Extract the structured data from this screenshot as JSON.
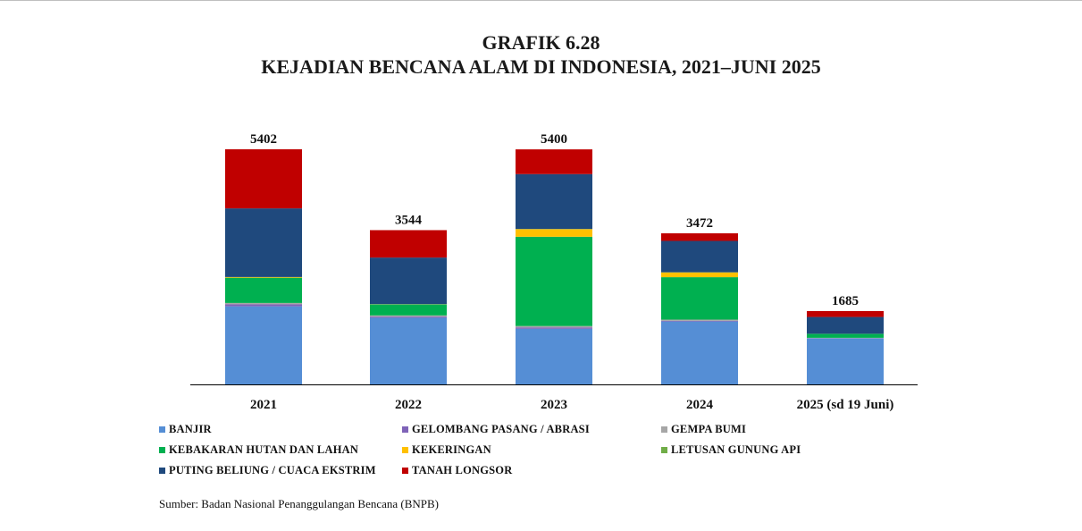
{
  "chart_data": {
    "type": "bar",
    "stacked": true,
    "title": "GRAFIK 6.28",
    "subtitle": "KEJADIAN BENCANA ALAM DI INDONESIA, 2021–JUNI 2025",
    "categories": [
      "2021",
      "2022",
      "2023",
      "2024",
      "2025 (sd 19 Juni)"
    ],
    "totals": [
      5402,
      3544,
      5400,
      3472,
      1685
    ],
    "series": [
      {
        "name": "BANJIR",
        "color": "#558ed5",
        "values": [
          1794,
          1531,
          1277,
          1446,
          1057
        ]
      },
      {
        "name": "GELOMBANG PASANG / ABRASI",
        "color": "#7f63b8",
        "values": [
          45,
          26,
          33,
          14,
          6
        ]
      },
      {
        "name": "GEMPA BUMI",
        "color": "#a6a6a6",
        "values": [
          32,
          28,
          31,
          29,
          7
        ]
      },
      {
        "name": "KEBAKARAN HUTAN DAN LAHAN",
        "color": "#00b050",
        "values": [
          580,
          252,
          2051,
          974,
          90
        ]
      },
      {
        "name": "KEKERINGAN",
        "color": "#ffc000",
        "values": [
          15,
          4,
          174,
          110,
          0
        ]
      },
      {
        "name": "LETUSAN GUNUNG API",
        "color": "#70ad47",
        "values": [
          1,
          4,
          5,
          3,
          3
        ]
      },
      {
        "name": "PUTING BELIUNG / CUACA EKSTRIM",
        "color": "#1f497d",
        "values": [
          1577,
          1069,
          1261,
          721,
          386
        ]
      },
      {
        "name": "TANAH LONGSOR",
        "color": "#c00000",
        "values": [
          1358,
          630,
          568,
          175,
          136
        ]
      }
    ],
    "ylim": [
      0,
      5500
    ],
    "grid": false,
    "legend_position": "bottom",
    "source": "Sumber: Badan Nasional Penanggulangan Bencana (BNPB)"
  }
}
